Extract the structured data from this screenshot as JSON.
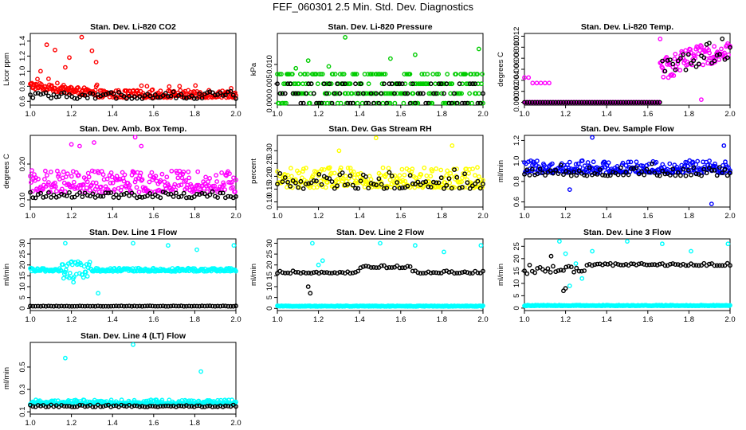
{
  "page": {
    "title": "FEF_060301  2.5 Min. Std. Dev. Diagnostics"
  },
  "colors": {
    "black": "#000000",
    "red": "#ff0000",
    "green": "#00cc00",
    "magenta": "#ff00ff",
    "yellow": "#ffff00",
    "blue": "#0000ff",
    "cyan": "#00ffff"
  },
  "chart_data": [
    {
      "type": "scatter",
      "title": "Stan. Dev. Li-820 CO2",
      "ylabel": "Licor ppm",
      "xlim": [
        1.0,
        2.0
      ],
      "ylim": [
        0.55,
        1.5
      ],
      "xticks": [
        "1.0",
        "1.2",
        "1.4",
        "1.6",
        "1.8",
        "2.0"
      ],
      "yticks": [
        "0.6",
        "0.8",
        "1.0",
        "1.2",
        "1.4"
      ],
      "series": [
        {
          "name": "main",
          "color": "#ff0000",
          "base": 0.68,
          "spread": 0.1,
          "max_frac": 0.35,
          "trend": "decline_early",
          "outliers": [
            [
              1.08,
              1.35
            ],
            [
              1.12,
              1.28
            ],
            [
              1.19,
              1.18
            ],
            [
              1.25,
              1.45
            ],
            [
              1.3,
              1.27
            ],
            [
              1.32,
              1.12
            ],
            [
              1.05,
              1.0
            ],
            [
              1.17,
              1.05
            ]
          ]
        },
        {
          "name": "alt",
          "color": "#000000",
          "base": 0.66,
          "spread": 0.08,
          "max_frac": 0.35,
          "trend": "flat",
          "outliers": []
        }
      ]
    },
    {
      "type": "scatter",
      "title": "Stan. Dev. Li-820 Pressure",
      "ylabel": "kPa",
      "xlim": [
        1.0,
        2.0
      ],
      "ylim": [
        -0.0005,
        0.018
      ],
      "xticks": [
        "1.0",
        "1.2",
        "1.4",
        "1.6",
        "1.8",
        "2.0"
      ],
      "yticks": [
        "0.000",
        "0.005",
        "0.010"
      ],
      "series": [
        {
          "name": "main",
          "color": "#00cc00",
          "base": 0.0,
          "spread": 0.0,
          "levels": [
            0,
            0.0025,
            0.005,
            0.0075
          ],
          "trend": "flat",
          "outliers": [
            [
              1.33,
              0.017
            ],
            [
              1.67,
              0.0125
            ],
            [
              1.98,
              0.014
            ],
            [
              1.15,
              0.011
            ],
            [
              1.25,
              0.0095
            ],
            [
              1.55,
              0.0115
            ],
            [
              1.09,
              0.009
            ]
          ]
        },
        {
          "name": "alt",
          "color": "#000000",
          "base": 0.0,
          "spread": 0.0,
          "levels": [
            0,
            0.0025,
            0.005
          ],
          "trend": "flat",
          "outliers": []
        }
      ]
    },
    {
      "type": "scatter",
      "title": "Stan. Dev. Li-820 Temp.",
      "ylabel": "degrees C",
      "xlim": [
        1.0,
        2.0
      ],
      "ylim": [
        -0.0005,
        0.0125
      ],
      "xticks": [
        "1.0",
        "1.2",
        "1.4",
        "1.6",
        "1.8",
        "2.0"
      ],
      "yticks": [
        "0.000",
        "0.002",
        "0.004",
        "0.006",
        "0.008",
        "0.010",
        "0.012"
      ],
      "series": [
        {
          "name": "main",
          "color": "#ff00ff",
          "base": 0.0,
          "spread": 0.0,
          "levels": [
            0
          ],
          "trend": "temp_step",
          "outliers": [
            [
              1.0,
              0.0045
            ],
            [
              1.02,
              0.0045
            ],
            [
              1.04,
              0.0035
            ],
            [
              1.06,
              0.0035
            ],
            [
              1.08,
              0.0035
            ],
            [
              1.1,
              0.0035
            ],
            [
              1.12,
              0.0035
            ],
            [
              1.66,
              0.0115
            ],
            [
              1.7,
              0.0045
            ],
            [
              1.86,
              0.0005
            ]
          ]
        },
        {
          "name": "alt",
          "color": "#000000",
          "base": 0.0,
          "spread": 0.0,
          "levels": [
            0
          ],
          "trend": "temp_step",
          "outliers": []
        }
      ]
    },
    {
      "type": "scatter",
      "title": "Stan. Dev. Amb. Box Temp.",
      "ylabel": "degrees C",
      "xlim": [
        1.0,
        2.0
      ],
      "ylim": [
        0.08,
        0.28
      ],
      "xticks": [
        "1.0",
        "1.2",
        "1.4",
        "1.6",
        "1.8",
        "2.0"
      ],
      "yticks": [
        "0.10",
        "0.20"
      ],
      "series": [
        {
          "name": "main",
          "color": "#ff00ff",
          "base": 0.14,
          "spread": 0.06,
          "max_frac": 1.0,
          "trend": "flat",
          "outliers": [
            [
              1.31,
              0.26
            ],
            [
              1.51,
              0.275
            ],
            [
              1.54,
              0.25
            ],
            [
              1.24,
              0.25
            ],
            [
              1.2,
              0.255
            ]
          ]
        },
        {
          "name": "alt",
          "color": "#000000",
          "base": 0.11,
          "spread": 0.015,
          "max_frac": 0.7,
          "trend": "flat",
          "outliers": []
        }
      ]
    },
    {
      "type": "scatter",
      "title": "Stan. Dev. Gas Stream RH",
      "ylabel": "percent",
      "xlim": [
        1.0,
        2.0
      ],
      "ylim": [
        0.08,
        0.36
      ],
      "xticks": [
        "1.0",
        "1.2",
        "1.4",
        "1.6",
        "1.8",
        "2.0"
      ],
      "yticks": [
        "0.10",
        "0.15",
        "0.20",
        "0.25",
        "0.30"
      ],
      "series": [
        {
          "name": "main",
          "color": "#ffff00",
          "base": 0.18,
          "spread": 0.08,
          "max_frac": 1.0,
          "trend": "flat",
          "outliers": [
            [
              1.48,
              0.35
            ],
            [
              1.85,
              0.32
            ],
            [
              1.3,
              0.3
            ]
          ]
        },
        {
          "name": "alt",
          "color": "#000000",
          "base": 0.17,
          "spread": 0.06,
          "max_frac": 0.18,
          "trend": "flat",
          "outliers": []
        }
      ]
    },
    {
      "type": "scatter",
      "title": "Stan. Dev. Sample Flow",
      "ylabel": "ml/min",
      "xlim": [
        1.0,
        2.0
      ],
      "ylim": [
        0.55,
        1.25
      ],
      "xticks": [
        "1.0",
        "1.2",
        "1.4",
        "1.6",
        "1.8",
        "2.0"
      ],
      "yticks": [
        "0.6",
        "0.8",
        "1.0",
        "1.2"
      ],
      "series": [
        {
          "name": "main",
          "color": "#0000ff",
          "base": 0.92,
          "spread": 0.12,
          "max_frac": 1.0,
          "trend": "flat",
          "outliers": [
            [
              1.33,
              1.23
            ],
            [
              1.97,
              1.15
            ],
            [
              1.91,
              0.58
            ],
            [
              1.22,
              0.72
            ]
          ]
        },
        {
          "name": "alt",
          "color": "#000000",
          "base": 0.88,
          "spread": 0.08,
          "max_frac": 0.35,
          "trend": "flat",
          "outliers": []
        }
      ]
    },
    {
      "type": "scatter",
      "title": "Stan. Dev. Line 1 Flow",
      "ylabel": "ml/min",
      "xlim": [
        1.0,
        2.0
      ],
      "ylim": [
        -1,
        32
      ],
      "xticks": [
        "1.0",
        "1.2",
        "1.4",
        "1.6",
        "1.8",
        "2.0"
      ],
      "yticks": [
        "0",
        "5",
        "10",
        "15",
        "20",
        "25",
        "30"
      ],
      "series": [
        {
          "name": "main",
          "color": "#00ffff",
          "base": 17.5,
          "spread": 1.5,
          "max_frac": 1.0,
          "trend": "bump",
          "outliers": [
            [
              1.17,
              30
            ],
            [
              1.5,
              30
            ],
            [
              1.67,
              29
            ],
            [
              1.81,
              27
            ],
            [
              1.99,
              29
            ],
            [
              1.33,
              7
            ],
            [
              1.21,
              12
            ]
          ]
        },
        {
          "name": "alt",
          "color": "#000000",
          "base": 1.0,
          "spread": 0.2,
          "max_frac": 1.0,
          "trend": "flat",
          "outliers": []
        }
      ]
    },
    {
      "type": "scatter",
      "title": "Stan. Dev. Line 2 Flow",
      "ylabel": "ml/min",
      "xlim": [
        1.0,
        2.0
      ],
      "ylim": [
        -1,
        32
      ],
      "xticks": [
        "1.0",
        "1.2",
        "1.4",
        "1.6",
        "1.8",
        "2.0"
      ],
      "yticks": [
        "0",
        "5",
        "10",
        "15",
        "20",
        "25",
        "30"
      ],
      "series": [
        {
          "name": "main",
          "color": "#00ffff",
          "base": 1.0,
          "spread": 0.3,
          "max_frac": 1.0,
          "trend": "flat",
          "outliers": [
            [
              1.17,
              30
            ],
            [
              1.5,
              30
            ],
            [
              1.67,
              29
            ],
            [
              1.81,
              26
            ],
            [
              1.99,
              29
            ],
            [
              1.2,
              20
            ],
            [
              1.22,
              22
            ]
          ]
        },
        {
          "name": "alt",
          "color": "#000000",
          "base": 16.5,
          "spread": 1.2,
          "max_frac": 1.0,
          "trend": "hump",
          "outliers": [
            [
              1.16,
              7
            ],
            [
              1.15,
              10
            ]
          ]
        }
      ]
    },
    {
      "type": "scatter",
      "title": "Stan. Dev. Line 3 Flow",
      "ylabel": "ml/min",
      "xlim": [
        1.0,
        2.0
      ],
      "ylim": [
        -1,
        28
      ],
      "xticks": [
        "1.0",
        "1.2",
        "1.4",
        "1.6",
        "1.8",
        "2.0"
      ],
      "yticks": [
        "0",
        "5",
        "10",
        "15",
        "20",
        "25"
      ],
      "series": [
        {
          "name": "main",
          "color": "#00ffff",
          "base": 1.0,
          "spread": 0.3,
          "max_frac": 1.0,
          "trend": "flat",
          "outliers": [
            [
              1.17,
              27
            ],
            [
              1.5,
              27
            ],
            [
              1.67,
              26
            ],
            [
              1.81,
              23
            ],
            [
              1.99,
              26
            ],
            [
              1.2,
              22
            ],
            [
              1.25,
              18
            ],
            [
              1.28,
              12
            ],
            [
              1.22,
              9
            ],
            [
              1.33,
              23
            ]
          ]
        },
        {
          "name": "alt",
          "color": "#000000",
          "base": 17.5,
          "spread": 1.0,
          "max_frac": 1.0,
          "trend": "dip_early",
          "outliers": [
            [
              1.19,
              7
            ],
            [
              1.2,
              8
            ],
            [
              1.13,
              21
            ]
          ]
        }
      ]
    },
    {
      "type": "scatter",
      "title": "Stan. Dev. Line 4 (LT) Flow",
      "ylabel": "ml/min",
      "xlim": [
        1.0,
        2.0
      ],
      "ylim": [
        0.08,
        0.72
      ],
      "xticks": [
        "1.0",
        "1.2",
        "1.4",
        "1.6",
        "1.8",
        "2.0"
      ],
      "yticks": [
        "0.1",
        "0.3",
        "0.5"
      ],
      "series": [
        {
          "name": "main",
          "color": "#00ffff",
          "base": 0.18,
          "spread": 0.04,
          "max_frac": 1.0,
          "trend": "flat",
          "outliers": [
            [
              1.17,
              0.58
            ],
            [
              1.5,
              0.7
            ],
            [
              1.83,
              0.46
            ]
          ]
        },
        {
          "name": "alt",
          "color": "#000000",
          "base": 0.15,
          "spread": 0.02,
          "max_frac": 1.0,
          "trend": "flat",
          "outliers": []
        }
      ]
    }
  ]
}
